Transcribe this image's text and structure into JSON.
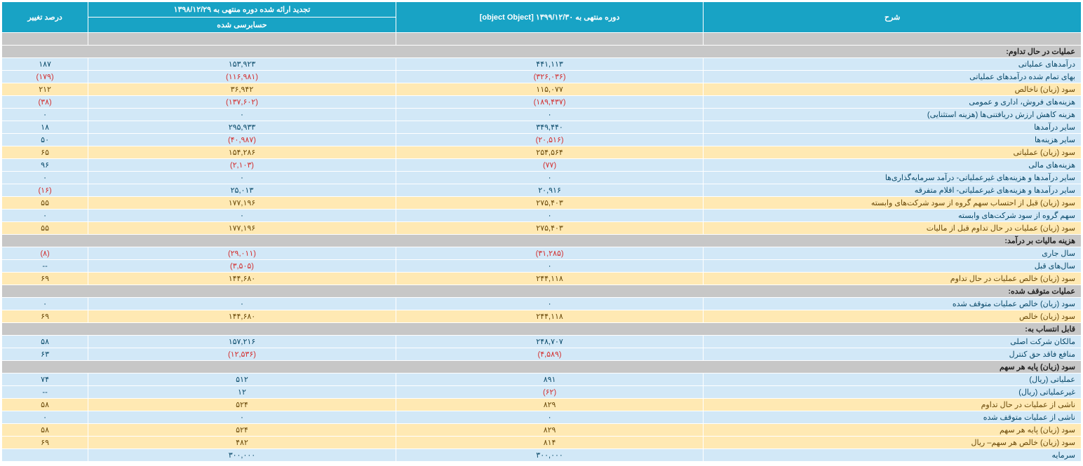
{
  "headers": {
    "desc": "شرح",
    "period_current": "دوره منتهی به ۱۳۹۹/۱۲/۳۰ [object Object]",
    "period_restated": "تجدید ارائه شده دوره منتهی به ۱۳۹۸/۱۲/۲۹",
    "audited": "حسابرسی شده",
    "pct_change": "درصد تغییر"
  },
  "sections": [
    {
      "type": "section",
      "label": "عملیات در حال تداوم:"
    },
    {
      "type": "row",
      "cls": "blue",
      "label": "درآمدهای عملیاتی",
      "cur": "۴۴۱,۱۱۳",
      "prev": "۱۵۳,۹۲۳",
      "pct": "۱۸۷"
    },
    {
      "type": "row",
      "cls": "blue",
      "label": "بهای تمام شده درآمدهای عملیاتی",
      "cur": "(۳۲۶,۰۳۶)",
      "prev": "(۱۱۶,۹۸۱)",
      "pct": "(۱۷۹)",
      "negCur": true,
      "negPrev": true,
      "negPct": true
    },
    {
      "type": "row",
      "cls": "yellow",
      "label": "سود (زیان) ناخالص",
      "cur": "۱۱۵,۰۷۷",
      "prev": "۳۶,۹۴۲",
      "pct": "۲۱۲"
    },
    {
      "type": "row",
      "cls": "blue",
      "label": "هزینه‌های فروش، اداری و عمومی",
      "cur": "(۱۸۹,۴۳۷)",
      "prev": "(۱۳۷,۶۰۲)",
      "pct": "(۳۸)",
      "negCur": true,
      "negPrev": true,
      "negPct": true
    },
    {
      "type": "row",
      "cls": "blue",
      "label": "هزینه کاهش ارزش دریافتنی‌ها (هزینه استثنایی)",
      "cur": "۰",
      "prev": "۰",
      "pct": "۰"
    },
    {
      "type": "row",
      "cls": "blue",
      "label": "سایر درآمدها",
      "cur": "۳۴۹,۴۴۰",
      "prev": "۲۹۵,۹۳۳",
      "pct": "۱۸"
    },
    {
      "type": "row",
      "cls": "blue",
      "label": "سایر هزینه‌ها",
      "cur": "(۲۰,۵۱۶)",
      "prev": "(۴۰,۹۸۷)",
      "pct": "۵۰",
      "negCur": true,
      "negPrev": true
    },
    {
      "type": "row",
      "cls": "yellow",
      "label": "سود (زیان) عملیاتی",
      "cur": "۲۵۴,۵۶۴",
      "prev": "۱۵۴,۲۸۶",
      "pct": "۶۵"
    },
    {
      "type": "row",
      "cls": "blue",
      "label": "هزینه‌های مالی",
      "cur": "(۷۷)",
      "prev": "(۲,۱۰۳)",
      "pct": "۹۶",
      "negCur": true,
      "negPrev": true
    },
    {
      "type": "row",
      "cls": "blue",
      "label": "سایر درآمدها و هزینه‌های غیرعملیاتی- درآمد سرمایه‌گذاری‌ها",
      "cur": "۰",
      "prev": "۰",
      "pct": "۰"
    },
    {
      "type": "row",
      "cls": "blue",
      "label": "سایر درآمدها و هزینه‌های غیرعملیاتی- اقلام متفرقه",
      "cur": "۲۰,۹۱۶",
      "prev": "۲۵,۰۱۳",
      "pct": "(۱۶)",
      "negPct": true
    },
    {
      "type": "row",
      "cls": "yellow",
      "label": "سود (زیان) قبل از احتساب سهم گروه از سود شرکت‌های وابسته",
      "cur": "۲۷۵,۴۰۳",
      "prev": "۱۷۷,۱۹۶",
      "pct": "۵۵"
    },
    {
      "type": "row",
      "cls": "blue",
      "label": "سهم گروه از سود شرکت‌های وابسته",
      "cur": "۰",
      "prev": "۰",
      "pct": "۰"
    },
    {
      "type": "row",
      "cls": "yellow",
      "label": "سود (زیان) عملیات در حال تداوم قبل از مالیات",
      "cur": "۲۷۵,۴۰۳",
      "prev": "۱۷۷,۱۹۶",
      "pct": "۵۵"
    },
    {
      "type": "section",
      "label": "هزینه مالیات بر درآمد:"
    },
    {
      "type": "row",
      "cls": "blue",
      "label": "سال جاری",
      "cur": "(۳۱,۲۸۵)",
      "prev": "(۲۹,۰۱۱)",
      "pct": "(۸)",
      "negCur": true,
      "negPrev": true,
      "negPct": true
    },
    {
      "type": "row",
      "cls": "blue",
      "label": "سال‌های قبل",
      "cur": "۰",
      "prev": "(۳,۵۰۵)",
      "pct": "--",
      "negPrev": true
    },
    {
      "type": "row",
      "cls": "yellow",
      "label": "سود (زیان) خالص عملیات در حال تداوم",
      "cur": "۲۴۴,۱۱۸",
      "prev": "۱۴۴,۶۸۰",
      "pct": "۶۹"
    },
    {
      "type": "section",
      "label": "عملیات متوقف شده:"
    },
    {
      "type": "row",
      "cls": "blue",
      "label": "سود (زیان) خالص عملیات متوقف شده",
      "cur": "۰",
      "prev": "۰",
      "pct": "۰"
    },
    {
      "type": "row",
      "cls": "yellow",
      "label": "سود (زیان) خالص",
      "cur": "۲۴۴,۱۱۸",
      "prev": "۱۴۴,۶۸۰",
      "pct": "۶۹"
    },
    {
      "type": "section",
      "label": "قابل انتساب به:"
    },
    {
      "type": "row",
      "cls": "blue",
      "label": "مالکان شرکت اصلی",
      "cur": "۲۴۸,۷۰۷",
      "prev": "۱۵۷,۲۱۶",
      "pct": "۵۸"
    },
    {
      "type": "row",
      "cls": "blue",
      "label": "منافع فاقد حق کنترل",
      "cur": "(۴,۵۸۹)",
      "prev": "(۱۲,۵۳۶)",
      "pct": "۶۳",
      "negCur": true,
      "negPrev": true
    },
    {
      "type": "section",
      "label": "سود (زیان) پایه هر سهم"
    },
    {
      "type": "row",
      "cls": "blue",
      "label": "عملیاتی (ریال)",
      "cur": "۸۹۱",
      "prev": "۵۱۲",
      "pct": "۷۴"
    },
    {
      "type": "row",
      "cls": "blue",
      "label": "غیرعملیاتی (ریال)",
      "cur": "(۶۲)",
      "prev": "۱۲",
      "pct": "--",
      "negCur": true
    },
    {
      "type": "row",
      "cls": "yellow",
      "label": "ناشی از عملیات در حال تداوم",
      "cur": "۸۲۹",
      "prev": "۵۲۴",
      "pct": "۵۸"
    },
    {
      "type": "row",
      "cls": "blue",
      "label": "ناشی از عملیات متوقف شده",
      "cur": "۰",
      "prev": "۰",
      "pct": "۰"
    },
    {
      "type": "row",
      "cls": "yellow",
      "label": "سود (زیان) پایه هر سهم",
      "cur": "۸۲۹",
      "prev": "۵۲۴",
      "pct": "۵۸"
    },
    {
      "type": "row",
      "cls": "yellow",
      "label": "سود (زیان) خالص هر سهم– ریال",
      "cur": "۸۱۴",
      "prev": "۴۸۲",
      "pct": "۶۹"
    },
    {
      "type": "row",
      "cls": "blue",
      "label": "سرمایه",
      "cur": "۳۰۰,۰۰۰",
      "prev": "۳۰۰,۰۰۰",
      "pct": ""
    }
  ]
}
